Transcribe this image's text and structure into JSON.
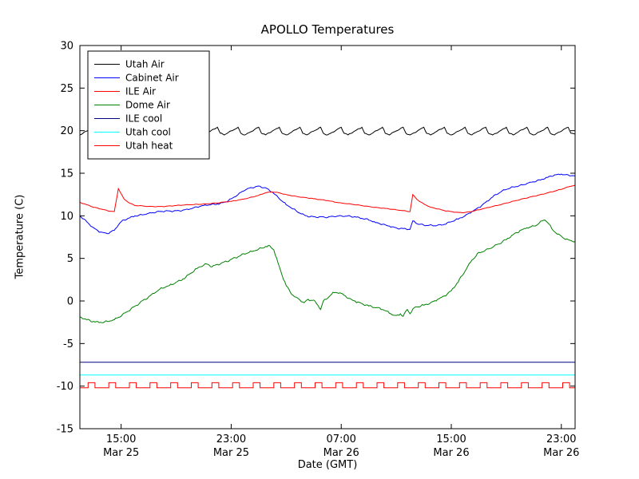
{
  "chart_data": {
    "type": "line",
    "title": "APOLLO Temperatures",
    "xlabel": "Date (GMT)",
    "ylabel": "Temperature (C)",
    "x_units": "hours since Mar 25 00:00 GMT",
    "xlim": [
      12,
      48
    ],
    "ylim": [
      -15,
      30
    ],
    "grid": false,
    "legend_position": "upper left",
    "yticks": [
      30,
      25,
      20,
      15,
      10,
      5,
      0,
      -5,
      -10,
      -15
    ],
    "xticks": [
      {
        "value": 15,
        "label": "15:00",
        "sublabel": "Mar 25"
      },
      {
        "value": 23,
        "label": "23:00",
        "sublabel": "Mar 25"
      },
      {
        "value": 31,
        "label": "07:00",
        "sublabel": "Mar 26"
      },
      {
        "value": 39,
        "label": "15:00",
        "sublabel": "Mar 26"
      },
      {
        "value": 47,
        "label": "23:00",
        "sublabel": "Mar 26"
      }
    ],
    "series": [
      {
        "id": "utah-air",
        "name": "Utah Air",
        "color": "#000000",
        "noise": 0.06,
        "x": [
          12,
          13,
          13.2,
          13.5,
          14.5,
          14.7,
          15,
          16,
          16.2,
          16.5,
          17.5,
          17.7,
          18,
          19,
          19.2,
          19.5,
          20.5,
          20.7,
          21,
          22,
          22.2,
          22.5,
          23.5,
          23.7,
          24,
          25,
          25.2,
          25.5,
          26.5,
          26.7,
          27,
          28,
          28.2,
          28.5,
          29.5,
          29.7,
          30,
          31,
          31.2,
          31.5,
          32.5,
          32.7,
          33,
          34,
          34.2,
          34.5,
          35.5,
          35.7,
          36,
          37,
          37.2,
          37.5,
          38.5,
          38.7,
          39,
          40,
          40.2,
          40.5,
          41.5,
          41.7,
          42,
          43,
          43.2,
          43.5,
          44.5,
          44.7,
          45,
          46,
          46.2,
          46.5,
          47.5,
          47.7,
          48
        ],
        "y": [
          19.5,
          20.4,
          19.7,
          19.5,
          20.4,
          19.7,
          19.5,
          20.4,
          19.7,
          19.5,
          20.4,
          19.7,
          19.5,
          20.4,
          19.7,
          19.5,
          20.4,
          19.7,
          19.5,
          20.4,
          19.7,
          19.5,
          20.4,
          19.7,
          19.5,
          20.4,
          19.7,
          19.5,
          20.4,
          19.7,
          19.5,
          20.4,
          19.7,
          19.5,
          20.4,
          19.7,
          19.5,
          20.4,
          19.7,
          19.5,
          20.4,
          19.7,
          19.5,
          20.4,
          19.7,
          19.5,
          20.4,
          19.7,
          19.5,
          20.4,
          19.7,
          19.5,
          20.4,
          19.7,
          19.5,
          20.4,
          19.7,
          19.5,
          20.4,
          19.7,
          19.5,
          20.4,
          19.7,
          19.5,
          20.4,
          19.7,
          19.5,
          20.4,
          19.7,
          19.5,
          20.4,
          19.7,
          19.6
        ]
      },
      {
        "id": "cabinet-air",
        "name": "Cabinet Air",
        "color": "#0000ff",
        "noise": 0.1,
        "x": [
          12,
          12.5,
          13,
          13.5,
          14,
          14.5,
          15,
          15.5,
          16,
          17,
          18,
          19,
          20,
          21,
          22,
          22.5,
          23,
          23.5,
          24,
          24.5,
          25,
          25.5,
          26,
          26.5,
          27,
          27.5,
          28,
          28.5,
          29,
          30,
          30.5,
          31,
          31.5,
          32,
          32.5,
          33,
          33.5,
          34,
          34.5,
          35,
          35.5,
          36,
          36.2,
          36.6,
          37,
          38,
          38.5,
          39,
          39.5,
          40,
          40.5,
          41,
          41.5,
          42,
          42.5,
          43,
          43.5,
          44,
          44.5,
          45,
          45.5,
          46,
          46.5,
          47,
          47.5,
          48
        ],
        "y": [
          10.0,
          9.3,
          8.6,
          8.1,
          7.9,
          8.3,
          9.3,
          9.7,
          10.0,
          10.3,
          10.5,
          10.6,
          10.8,
          11.2,
          11.4,
          11.6,
          12.0,
          12.5,
          13.0,
          13.3,
          13.5,
          13.3,
          12.8,
          12.0,
          11.3,
          10.8,
          10.3,
          10.0,
          9.9,
          9.8,
          9.9,
          10.0,
          10.0,
          9.9,
          9.7,
          9.5,
          9.2,
          9.0,
          8.8,
          8.6,
          8.5,
          8.4,
          9.4,
          9.0,
          8.9,
          8.9,
          9.0,
          9.3,
          9.6,
          10.0,
          10.5,
          11.0,
          11.6,
          12.2,
          12.7,
          13.1,
          13.4,
          13.6,
          13.8,
          14.0,
          14.2,
          14.5,
          14.8,
          14.9,
          14.8,
          14.7
        ]
      },
      {
        "id": "ile-air",
        "name": "ILE Air",
        "color": "#ff0000",
        "noise": 0.04,
        "x": [
          12,
          12.5,
          13,
          13.5,
          14,
          14.5,
          14.8,
          15.2,
          15.6,
          16,
          17,
          18,
          19,
          20,
          21,
          22,
          23,
          24,
          25,
          25.5,
          26,
          26.5,
          27,
          28,
          29,
          30,
          31,
          32,
          33,
          34,
          35,
          35.5,
          36,
          36.2,
          36.6,
          37,
          37.5,
          38,
          38.5,
          39,
          39.5,
          40,
          40.5,
          41,
          41.5,
          42,
          43,
          44,
          45,
          46,
          47,
          47.5,
          48
        ],
        "y": [
          11.6,
          11.3,
          11.0,
          10.8,
          10.6,
          10.5,
          13.2,
          12.0,
          11.5,
          11.2,
          11.1,
          11.1,
          11.2,
          11.3,
          11.4,
          11.5,
          11.7,
          12.0,
          12.4,
          12.7,
          12.8,
          12.7,
          12.5,
          12.2,
          12.0,
          11.8,
          11.5,
          11.3,
          11.1,
          10.9,
          10.7,
          10.6,
          10.5,
          12.5,
          11.8,
          11.4,
          11.0,
          10.8,
          10.6,
          10.5,
          10.4,
          10.4,
          10.5,
          10.7,
          10.9,
          11.1,
          11.5,
          11.9,
          12.3,
          12.7,
          13.1,
          13.4,
          13.6
        ]
      },
      {
        "id": "dome-air",
        "name": "Dome Air",
        "color": "#008000",
        "noise": 0.13,
        "x": [
          12,
          12.5,
          13,
          13.5,
          14,
          14.5,
          15,
          15.5,
          16,
          16.5,
          17,
          17.5,
          18,
          18.5,
          19,
          19.5,
          20,
          20.5,
          21,
          21.3,
          21.6,
          22,
          22.5,
          23,
          23.5,
          24,
          24.5,
          25,
          25.5,
          25.8,
          26.1,
          26.4,
          26.7,
          27,
          27.3,
          27.6,
          28,
          28.3,
          28.6,
          29,
          29.3,
          29.5,
          29.7,
          30,
          30.3,
          30.6,
          31,
          31.3,
          31.6,
          32,
          32.5,
          33,
          33.5,
          34,
          34.3,
          34.6,
          35,
          35.3,
          35.5,
          35.8,
          36,
          36.3,
          36.6,
          37,
          37.5,
          38,
          38.5,
          39,
          39.5,
          40,
          40.5,
          41,
          41.5,
          42,
          42.5,
          43,
          43.5,
          44,
          44.5,
          45,
          45.3,
          45.6,
          45.8,
          46,
          46.3,
          46.6,
          47,
          47.5,
          48
        ],
        "y": [
          -1.9,
          -2.2,
          -2.4,
          -2.5,
          -2.4,
          -2.2,
          -1.8,
          -1.2,
          -0.6,
          0.0,
          0.5,
          1.0,
          1.5,
          1.8,
          2.2,
          2.6,
          3.2,
          3.8,
          4.2,
          4.3,
          4.0,
          4.3,
          4.6,
          4.9,
          5.2,
          5.5,
          5.8,
          6.1,
          6.4,
          6.5,
          6.0,
          4.5,
          3.0,
          1.8,
          1.0,
          0.5,
          0.1,
          -0.2,
          0.2,
          0.1,
          -0.5,
          -1.0,
          0.0,
          0.3,
          0.8,
          1.0,
          0.9,
          0.6,
          0.3,
          0.0,
          -0.3,
          -0.6,
          -0.8,
          -1.0,
          -1.2,
          -1.5,
          -1.7,
          -1.5,
          -1.8,
          -1.0,
          -1.5,
          -0.8,
          -0.7,
          -0.5,
          -0.2,
          0.2,
          0.6,
          1.2,
          2.2,
          3.5,
          4.8,
          5.7,
          6.0,
          6.3,
          6.7,
          7.2,
          7.8,
          8.3,
          8.6,
          8.8,
          9.0,
          9.4,
          9.5,
          9.2,
          8.5,
          8.0,
          7.6,
          7.2,
          7.0
        ]
      },
      {
        "id": "ile-cool",
        "name": "ILE cool",
        "color": "#000080",
        "noise": 0,
        "x": [
          12,
          48
        ],
        "y": [
          -7.2,
          -7.2
        ]
      },
      {
        "id": "utah-cool",
        "name": "Utah cool",
        "color": "#00ffff",
        "noise": 0,
        "x": [
          12,
          48
        ],
        "y": [
          -8.7,
          -8.7
        ]
      },
      {
        "id": "utah-heat",
        "name": "Utah heat",
        "color": "#ff0000",
        "noise": 0,
        "x": [
          12,
          12.6,
          12.6,
          13.1,
          13.1,
          14.1,
          14.1,
          14.6,
          14.6,
          15.6,
          15.6,
          16.1,
          16.1,
          17.1,
          17.1,
          17.6,
          17.6,
          18.6,
          18.6,
          19.1,
          19.1,
          20.1,
          20.1,
          20.6,
          20.6,
          21.6,
          21.6,
          22.1,
          22.1,
          23.1,
          23.1,
          23.6,
          23.6,
          24.6,
          24.6,
          25.1,
          25.1,
          26.1,
          26.1,
          26.6,
          26.6,
          27.6,
          27.6,
          28.1,
          28.1,
          29.1,
          29.1,
          29.6,
          29.6,
          30.6,
          30.6,
          31.1,
          31.1,
          32.1,
          32.1,
          32.6,
          32.6,
          33.6,
          33.6,
          34.1,
          34.1,
          35.1,
          35.1,
          35.6,
          35.6,
          36.6,
          36.6,
          37.1,
          37.1,
          38.1,
          38.1,
          38.6,
          38.6,
          39.6,
          39.6,
          40.1,
          40.1,
          41.1,
          41.1,
          41.6,
          41.6,
          42.6,
          42.6,
          43.1,
          43.1,
          44.1,
          44.1,
          44.6,
          44.6,
          45.6,
          45.6,
          46.1,
          46.1,
          47.1,
          47.1,
          47.6,
          47.6,
          48
        ],
        "y": [
          -10.2,
          -10.2,
          -9.6,
          -9.6,
          -10.2,
          -10.2,
          -9.6,
          -9.6,
          -10.2,
          -10.2,
          -9.6,
          -9.6,
          -10.2,
          -10.2,
          -9.6,
          -9.6,
          -10.2,
          -10.2,
          -9.6,
          -9.6,
          -10.2,
          -10.2,
          -9.6,
          -9.6,
          -10.2,
          -10.2,
          -9.6,
          -9.6,
          -10.2,
          -10.2,
          -9.6,
          -9.6,
          -10.2,
          -10.2,
          -9.6,
          -9.6,
          -10.2,
          -10.2,
          -9.6,
          -9.6,
          -10.2,
          -10.2,
          -9.6,
          -9.6,
          -10.2,
          -10.2,
          -9.6,
          -9.6,
          -10.2,
          -10.2,
          -9.6,
          -9.6,
          -10.2,
          -10.2,
          -9.6,
          -9.6,
          -10.2,
          -10.2,
          -9.6,
          -9.6,
          -10.2,
          -10.2,
          -9.6,
          -9.6,
          -10.2,
          -10.2,
          -9.6,
          -9.6,
          -10.2,
          -10.2,
          -9.6,
          -9.6,
          -10.2,
          -10.2,
          -9.6,
          -9.6,
          -10.2,
          -10.2,
          -9.6,
          -9.6,
          -10.2,
          -10.2,
          -9.6,
          -9.6,
          -10.2,
          -10.2,
          -9.6,
          -9.6,
          -10.2,
          -10.2,
          -9.6,
          -9.6,
          -10.2,
          -10.2,
          -9.6,
          -9.6,
          -10.2,
          -10.2
        ]
      }
    ]
  }
}
